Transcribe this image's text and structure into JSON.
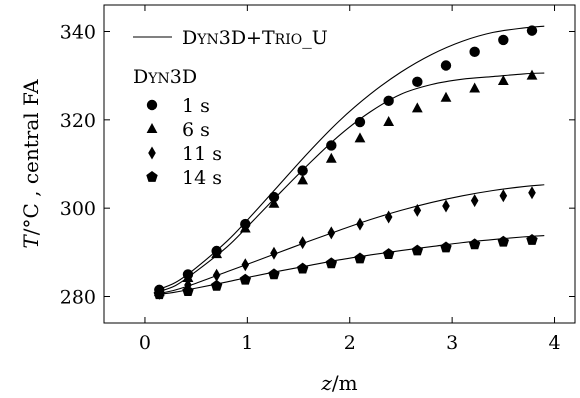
{
  "chart_data": {
    "type": "line",
    "xlabel_var": "z",
    "xlabel_unit": "/m",
    "ylabel_var": "T",
    "ylabel_rest": "/°C , central FA",
    "xlim": [
      -0.4,
      4.2
    ],
    "ylim": [
      274,
      346
    ],
    "xticks": [
      0,
      1,
      2,
      3,
      4
    ],
    "yticks": [
      280,
      300,
      320,
      340
    ],
    "legend": {
      "placement": "top-left",
      "line_label": [
        "D",
        "YN",
        "3D+T",
        "RIO",
        "_U"
      ],
      "group_title": [
        "D",
        "YN",
        "3D"
      ],
      "entries": [
        {
          "label": "1 s",
          "marker": "circle"
        },
        {
          "label": "6 s",
          "marker": "triangle"
        },
        {
          "label": "11 s",
          "marker": "diamond"
        },
        {
          "label": "14 s",
          "marker": "pentagon"
        }
      ]
    },
    "series": [
      {
        "name": "1 s",
        "marker": "circle",
        "line": {
          "x": [
            0.12,
            0.3,
            0.5,
            0.8,
            1.0,
            1.3,
            1.6,
            1.9,
            2.2,
            2.5,
            2.8,
            3.1,
            3.4,
            3.7,
            3.9
          ],
          "y": [
            281.5,
            283.2,
            286.5,
            292.5,
            297.3,
            305.0,
            312.7,
            319.8,
            325.8,
            330.8,
            334.8,
            337.8,
            339.8,
            340.8,
            341.2
          ]
        },
        "x": [
          0.14,
          0.42,
          0.7,
          0.98,
          1.26,
          1.54,
          1.82,
          2.1,
          2.38,
          2.66,
          2.94,
          3.22,
          3.5,
          3.78
        ],
        "y": [
          281.5,
          285.0,
          290.3,
          296.4,
          302.5,
          308.5,
          314.2,
          319.5,
          324.3,
          328.6,
          332.3,
          335.4,
          338.1,
          340.2
        ]
      },
      {
        "name": "6 s",
        "marker": "triangle",
        "line": {
          "x": [
            0.12,
            0.3,
            0.5,
            0.8,
            1.0,
            1.3,
            1.6,
            1.9,
            2.2,
            2.5,
            2.8,
            3.1,
            3.4,
            3.7,
            3.9
          ],
          "y": [
            281.0,
            282.5,
            285.7,
            291.2,
            295.8,
            303.0,
            310.0,
            316.5,
            321.8,
            325.8,
            328.0,
            329.2,
            329.8,
            330.4,
            330.6
          ]
        },
        "x": [
          0.14,
          0.42,
          0.7,
          0.98,
          1.26,
          1.54,
          1.82,
          2.1,
          2.38,
          2.66,
          2.94,
          3.22,
          3.5,
          3.78
        ],
        "y": [
          281.0,
          284.2,
          289.6,
          295.4,
          301.0,
          306.3,
          311.2,
          315.8,
          319.5,
          322.6,
          325.0,
          327.1,
          328.8,
          330.0
        ]
      },
      {
        "name": "11 s",
        "marker": "diamond",
        "line": {
          "x": [
            0.12,
            0.3,
            0.5,
            0.8,
            1.0,
            1.3,
            1.6,
            1.9,
            2.2,
            2.5,
            2.8,
            3.1,
            3.4,
            3.7,
            3.9
          ],
          "y": [
            280.6,
            281.5,
            283.0,
            285.6,
            287.3,
            289.9,
            292.5,
            295.0,
            297.4,
            299.5,
            301.3,
            302.8,
            304.0,
            304.9,
            305.3
          ]
        },
        "x": [
          0.14,
          0.42,
          0.7,
          0.98,
          1.26,
          1.54,
          1.82,
          2.1,
          2.38,
          2.66,
          2.94,
          3.22,
          3.5,
          3.78
        ],
        "y": [
          280.7,
          282.6,
          284.8,
          287.2,
          289.8,
          292.2,
          294.4,
          296.4,
          298.0,
          299.5,
          300.5,
          301.7,
          302.8,
          303.5
        ]
      },
      {
        "name": "14 s",
        "marker": "pentagon",
        "line": {
          "x": [
            0.12,
            0.3,
            0.5,
            0.8,
            1.0,
            1.3,
            1.6,
            1.9,
            2.2,
            2.5,
            2.8,
            3.1,
            3.4,
            3.7,
            3.9
          ],
          "y": [
            280.4,
            281.0,
            281.9,
            283.3,
            284.3,
            285.7,
            287.0,
            288.3,
            289.4,
            290.4,
            291.3,
            292.2,
            292.9,
            293.5,
            293.8
          ]
        },
        "x": [
          0.14,
          0.42,
          0.7,
          0.98,
          1.26,
          1.54,
          1.82,
          2.1,
          2.38,
          2.66,
          2.94,
          3.22,
          3.5,
          3.78
        ],
        "y": [
          280.5,
          281.2,
          282.4,
          283.8,
          285.0,
          286.3,
          287.5,
          288.6,
          289.6,
          290.4,
          291.1,
          291.8,
          292.4,
          292.8
        ]
      }
    ]
  }
}
